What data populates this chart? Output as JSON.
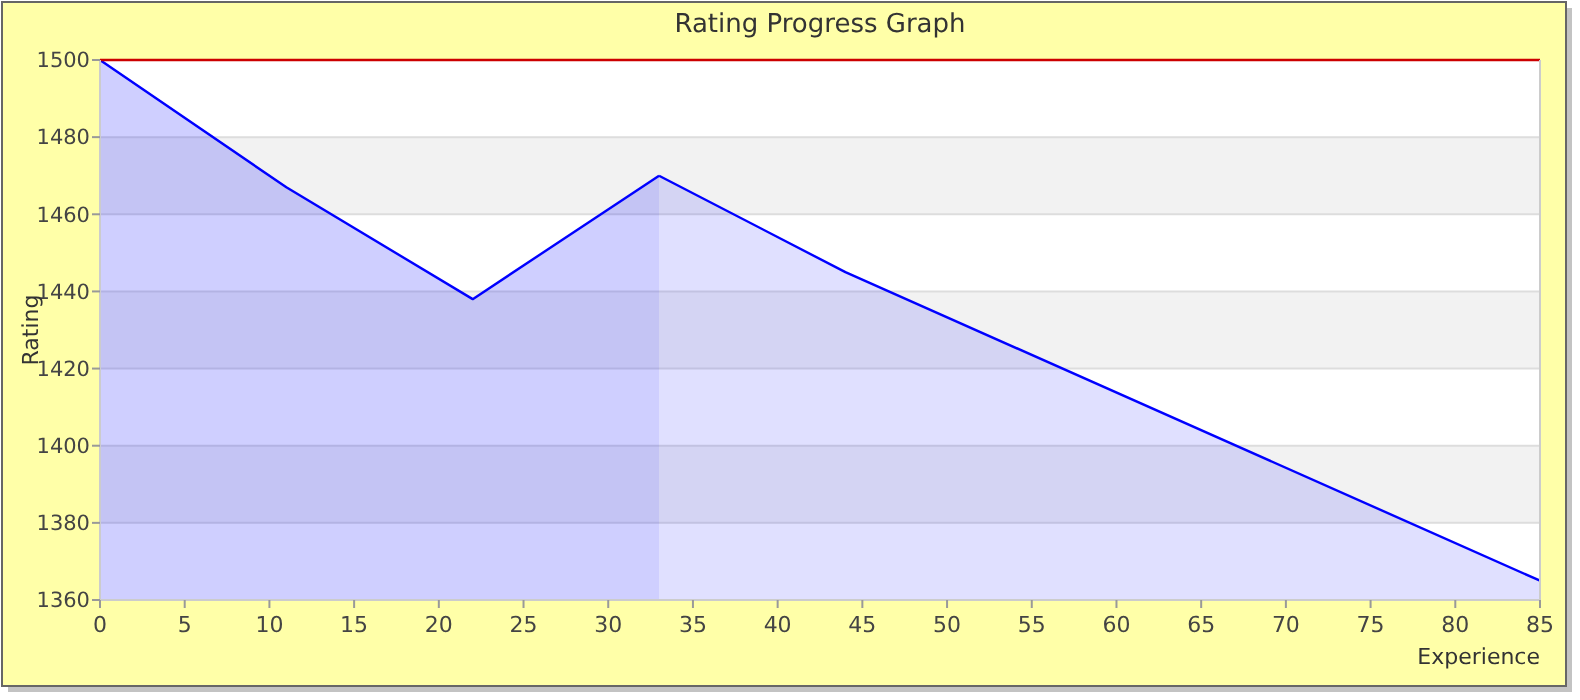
{
  "chart_data": {
    "type": "area",
    "title": "Rating Progress Graph",
    "xlabel": "Experience",
    "ylabel": "Rating",
    "series": [
      {
        "color": "#0000ff",
        "x": [
          0,
          11,
          22,
          33
        ],
        "values": [
          1500,
          1467,
          1438,
          1470
        ]
      },
      {
        "color": "#0000ff",
        "x": [
          33,
          44,
          85
        ],
        "values": [
          1470,
          1445,
          1365
        ]
      }
    ],
    "xlim": [
      0,
      85
    ],
    "xticks": [
      0,
      5,
      10,
      15,
      20,
      25,
      30,
      35,
      40,
      45,
      50,
      55,
      60,
      65,
      70,
      75,
      80,
      85
    ],
    "ylim": [
      1360,
      1500
    ],
    "yticks": [
      1360,
      1380,
      1400,
      1420,
      1440,
      1460,
      1480,
      1500
    ],
    "ref_lines": [
      {
        "axis": "y",
        "value": 1500,
        "color": "#cc0000"
      }
    ],
    "grid": "y"
  }
}
